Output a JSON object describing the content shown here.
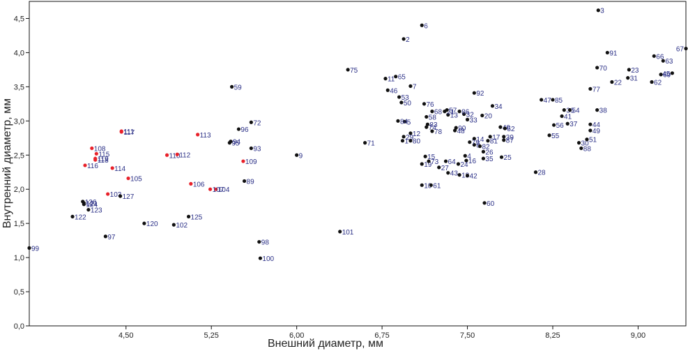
{
  "chart_data": {
    "type": "scatter",
    "xlabel": "Внешний диаметр, мм",
    "ylabel": "Внутренний диаметр, мм",
    "xlim": [
      3.65,
      9.42
    ],
    "ylim": [
      0,
      4.75
    ],
    "x_ticks": [
      4.5,
      5.25,
      6.0,
      6.75,
      7.5,
      8.25,
      9.0
    ],
    "x_tick_labels": [
      "4,50",
      "5,25",
      "6,00",
      "6,75",
      "7,50",
      "8,25",
      "9,00"
    ],
    "y_ticks": [
      0,
      0.5,
      1.0,
      1.5,
      2.0,
      2.5,
      3.0,
      3.5,
      4.0,
      4.5
    ],
    "y_tick_labels": [
      "0,0",
      "0,5",
      "1,0",
      "1,5",
      "2,0",
      "2,5",
      "3,0",
      "3,5",
      "4,0",
      "4,5"
    ],
    "grid": false,
    "colors": {
      "black": "#111111",
      "red": "#e8212a",
      "label": "#2a2f86",
      "axis": "#111111"
    },
    "series": [
      {
        "color": "black",
        "points": [
          {
            "id": "1",
            "x": 6.93,
            "y": 2.71
          },
          {
            "id": "2",
            "x": 6.94,
            "y": 4.2
          },
          {
            "id": "3",
            "x": 8.65,
            "y": 4.62
          },
          {
            "id": "4",
            "x": 7.48,
            "y": 2.49
          },
          {
            "id": "5",
            "x": 6.95,
            "y": 2.99
          },
          {
            "id": "6",
            "x": 7.1,
            "y": 4.4
          },
          {
            "id": "7",
            "x": 7.0,
            "y": 3.51
          },
          {
            "id": "8",
            "x": 7.56,
            "y": 2.65
          },
          {
            "id": "10",
            "x": 7.1,
            "y": 2.06
          },
          {
            "id": "11",
            "x": 6.78,
            "y": 3.62
          },
          {
            "id": "12",
            "x": 7.0,
            "y": 2.82
          },
          {
            "id": "13",
            "x": 7.33,
            "y": 3.09
          },
          {
            "id": "14",
            "x": 7.56,
            "y": 2.74
          },
          {
            "id": "15",
            "x": 7.13,
            "y": 2.48
          },
          {
            "id": "16",
            "x": 7.49,
            "y": 2.42
          },
          {
            "id": "17",
            "x": 7.7,
            "y": 2.77
          },
          {
            "id": "18",
            "x": 7.43,
            "y": 2.21
          },
          {
            "id": "19",
            "x": 7.1,
            "y": 2.37
          },
          {
            "id": "20",
            "x": 7.63,
            "y": 3.08
          },
          {
            "id": "21",
            "x": 7.3,
            "y": 3.14
          },
          {
            "id": "22",
            "x": 8.77,
            "y": 3.57
          },
          {
            "id": "23",
            "x": 8.92,
            "y": 3.75
          },
          {
            "id": "24",
            "x": 7.42,
            "y": 2.37
          },
          {
            "id": "25",
            "x": 7.8,
            "y": 2.47
          },
          {
            "id": "26",
            "x": 7.64,
            "y": 2.55
          },
          {
            "id": "27",
            "x": 7.25,
            "y": 2.32
          },
          {
            "id": "28",
            "x": 8.1,
            "y": 2.25
          },
          {
            "id": "29",
            "x": 6.94,
            "y": 2.77
          },
          {
            "id": "30",
            "x": 8.48,
            "y": 2.68
          },
          {
            "id": "31",
            "x": 8.91,
            "y": 3.63
          },
          {
            "id": "32",
            "x": 7.47,
            "y": 3.1
          },
          {
            "id": "33",
            "x": 7.5,
            "y": 3.02
          },
          {
            "id": "34",
            "x": 7.72,
            "y": 3.22
          },
          {
            "id": "35",
            "x": 7.64,
            "y": 2.45
          },
          {
            "id": "36",
            "x": 8.35,
            "y": 3.16
          },
          {
            "id": "37",
            "x": 8.38,
            "y": 2.96
          },
          {
            "id": "38",
            "x": 8.64,
            "y": 3.16
          },
          {
            "id": "39",
            "x": 7.82,
            "y": 2.77
          },
          {
            "id": "40",
            "x": 7.79,
            "y": 2.91
          },
          {
            "id": "41",
            "x": 8.33,
            "y": 3.07
          },
          {
            "id": "42",
            "x": 7.5,
            "y": 2.2
          },
          {
            "id": "43",
            "x": 7.33,
            "y": 2.24
          },
          {
            "id": "44",
            "x": 8.58,
            "y": 2.95
          },
          {
            "id": "45",
            "x": 9.3,
            "y": 3.7
          },
          {
            "id": "46",
            "x": 6.8,
            "y": 3.45
          },
          {
            "id": "47",
            "x": 8.15,
            "y": 3.31
          },
          {
            "id": "48",
            "x": 7.39,
            "y": 2.86
          },
          {
            "id": "49",
            "x": 8.58,
            "y": 2.86
          },
          {
            "id": "50",
            "x": 6.92,
            "y": 3.27
          },
          {
            "id": "51",
            "x": 8.55,
            "y": 2.73
          },
          {
            "id": "52",
            "x": 7.83,
            "y": 2.89
          },
          {
            "id": "53",
            "x": 6.9,
            "y": 3.35
          },
          {
            "id": "54",
            "x": 8.4,
            "y": 3.16
          },
          {
            "id": "55",
            "x": 8.22,
            "y": 2.79
          },
          {
            "id": "56",
            "x": 8.26,
            "y": 2.94
          },
          {
            "id": "57",
            "x": 7.32,
            "y": 3.16
          },
          {
            "id": "58",
            "x": 7.14,
            "y": 3.06
          },
          {
            "id": "60",
            "x": 7.65,
            "y": 1.8
          },
          {
            "id": "61",
            "x": 7.18,
            "y": 2.06
          },
          {
            "id": "62",
            "x": 9.12,
            "y": 3.57
          },
          {
            "id": "63",
            "x": 9.22,
            "y": 3.88
          },
          {
            "id": "64",
            "x": 7.31,
            "y": 2.41
          },
          {
            "id": "65",
            "x": 6.87,
            "y": 3.65
          },
          {
            "id": "66",
            "x": 9.14,
            "y": 3.95
          },
          {
            "id": "67",
            "x": 9.42,
            "y": 4.06
          },
          {
            "id": "68",
            "x": 7.19,
            "y": 3.14
          },
          {
            "id": "69",
            "x": 9.2,
            "y": 3.68
          },
          {
            "id": "70",
            "x": 8.64,
            "y": 3.78
          },
          {
            "id": "71",
            "x": 6.6,
            "y": 2.68
          },
          {
            "id": "73",
            "x": 7.16,
            "y": 2.41
          },
          {
            "id": "74",
            "x": 7.14,
            "y": 2.91
          },
          {
            "id": "75",
            "x": 6.45,
            "y": 3.75
          },
          {
            "id": "76",
            "x": 7.12,
            "y": 3.25
          },
          {
            "id": "77",
            "x": 8.58,
            "y": 3.47
          },
          {
            "id": "78",
            "x": 7.19,
            "y": 2.85
          },
          {
            "id": "79",
            "x": 7.52,
            "y": 2.69
          },
          {
            "id": "80",
            "x": 7.0,
            "y": 2.71
          },
          {
            "id": "81",
            "x": 7.68,
            "y": 2.71
          },
          {
            "id": "82",
            "x": 7.61,
            "y": 2.63
          },
          {
            "id": "83",
            "x": 7.15,
            "y": 2.95
          },
          {
            "id": "84",
            "x": 6.89,
            "y": 3.0
          },
          {
            "id": "85",
            "x": 8.25,
            "y": 3.31
          },
          {
            "id": "86",
            "x": 7.43,
            "y": 3.14
          },
          {
            "id": "87",
            "x": 7.82,
            "y": 2.72
          },
          {
            "id": "88",
            "x": 8.5,
            "y": 2.6
          },
          {
            "id": "89",
            "x": 5.54,
            "y": 2.12
          },
          {
            "id": "90",
            "x": 7.4,
            "y": 2.9
          },
          {
            "id": "91",
            "x": 8.73,
            "y": 4.0
          },
          {
            "id": "92",
            "x": 7.56,
            "y": 3.41
          },
          {
            "id": "93",
            "x": 5.6,
            "y": 2.6
          },
          {
            "id": "95",
            "x": 5.41,
            "y": 2.68
          },
          {
            "id": "96",
            "x": 5.49,
            "y": 2.88
          },
          {
            "id": "98",
            "x": 5.67,
            "y": 1.23
          },
          {
            "id": "100",
            "x": 5.68,
            "y": 0.99
          },
          {
            "id": "101",
            "x": 6.38,
            "y": 1.38
          }
        ]
      },
      {
        "color": "red",
        "points": [
          {
            "id": "103",
            "x": 4.34,
            "y": 1.93
          },
          {
            "id": "104",
            "x": 5.29,
            "y": 2.0
          },
          {
            "id": "105",
            "x": 4.52,
            "y": 2.16
          },
          {
            "id": "106",
            "x": 5.07,
            "y": 2.08
          },
          {
            "id": "107",
            "x": 5.24,
            "y": 2.0
          },
          {
            "id": "108",
            "x": 4.2,
            "y": 2.6
          },
          {
            "id": "109",
            "x": 5.53,
            "y": 2.41
          },
          {
            "id": "110",
            "x": 4.86,
            "y": 2.5
          },
          {
            "id": "111",
            "x": 4.46,
            "y": 2.85
          },
          {
            "id": "112",
            "x": 4.95,
            "y": 2.51
          },
          {
            "id": "113",
            "x": 5.13,
            "y": 2.8
          },
          {
            "id": "114",
            "x": 4.38,
            "y": 2.31
          },
          {
            "id": "115",
            "x": 4.24,
            "y": 2.52
          },
          {
            "id": "116",
            "x": 4.14,
            "y": 2.35
          },
          {
            "id": "117",
            "x": 4.46,
            "y": 2.84
          },
          {
            "id": "118",
            "x": 4.23,
            "y": 2.43
          },
          {
            "id": "119",
            "x": 4.23,
            "y": 2.45
          }
        ]
      },
      {
        "color": "black",
        "points": [
          {
            "id": "9",
            "x": 6.0,
            "y": 2.5
          },
          {
            "id": "59",
            "x": 5.43,
            "y": 3.5
          },
          {
            "id": "72",
            "x": 5.6,
            "y": 2.98
          },
          {
            "id": "94",
            "x": 5.42,
            "y": 2.7
          },
          {
            "id": "97",
            "x": 4.32,
            "y": 1.31
          },
          {
            "id": "99",
            "x": 3.65,
            "y": 1.14
          },
          {
            "id": "102",
            "x": 4.92,
            "y": 1.48
          },
          {
            "id": "120",
            "x": 4.66,
            "y": 1.5
          },
          {
            "id": "121",
            "x": 4.13,
            "y": 1.8
          },
          {
            "id": "122",
            "x": 4.03,
            "y": 1.6
          },
          {
            "id": "123",
            "x": 4.17,
            "y": 1.7
          },
          {
            "id": "124",
            "x": 4.13,
            "y": 1.78
          },
          {
            "id": "125",
            "x": 5.05,
            "y": 1.6
          },
          {
            "id": "126",
            "x": 4.12,
            "y": 1.82
          },
          {
            "id": "127",
            "x": 4.45,
            "y": 1.9
          }
        ]
      }
    ]
  }
}
